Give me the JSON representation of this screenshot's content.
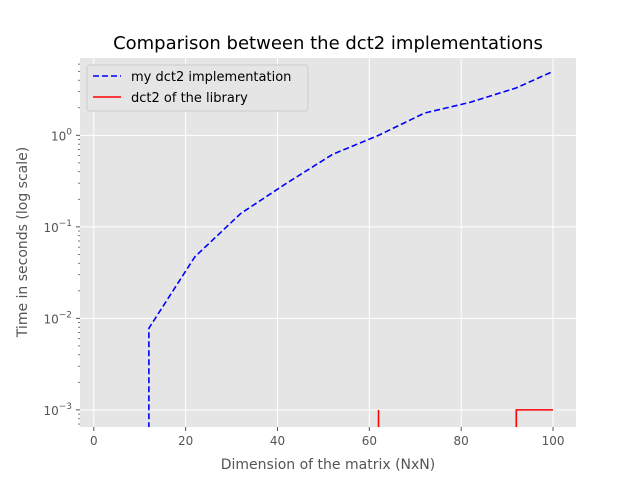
{
  "chart_data": {
    "type": "line",
    "title": "Comparison between the dct2 implementations",
    "xlabel": "Dimension of the matrix (NxN)",
    "ylabel": "Time in seconds (log scale)",
    "x_ticks": [
      "0",
      "20",
      "40",
      "60",
      "80",
      "100"
    ],
    "y_ticks": [
      {
        "base": "10",
        "exp": "0",
        "value": 1
      },
      {
        "base": "10",
        "exp": "−1",
        "value": 0.1
      },
      {
        "base": "10",
        "exp": "−2",
        "value": 0.01
      },
      {
        "base": "10",
        "exp": "−3",
        "value": 0.001
      }
    ],
    "xlim": [
      -3,
      105
    ],
    "ylim": [
      0.00065,
      7
    ],
    "y_scale": "log",
    "grid": true,
    "legend_position": "top-left",
    "series": [
      {
        "name": "my dct2 implementation",
        "color": "#0000ff",
        "style": "dashed",
        "points": [
          [
            12,
            0.0004
          ],
          [
            12,
            0.0078
          ],
          [
            22,
            0.047
          ],
          [
            32,
            0.14
          ],
          [
            42,
            0.3
          ],
          [
            52,
            0.62
          ],
          [
            62,
            1.0
          ],
          [
            72,
            1.75
          ],
          [
            82,
            2.3
          ],
          [
            92,
            3.3
          ],
          [
            100,
            5.0
          ]
        ]
      },
      {
        "name": "dct2 of the library",
        "color": "#ff0000",
        "style": "solid",
        "segments": [
          [
            [
              62,
              0.0004
            ],
            [
              62,
              0.001
            ]
          ],
          [
            [
              92,
              0.0004
            ],
            [
              92,
              0.001
            ],
            [
              100,
              0.001
            ]
          ]
        ]
      }
    ]
  }
}
